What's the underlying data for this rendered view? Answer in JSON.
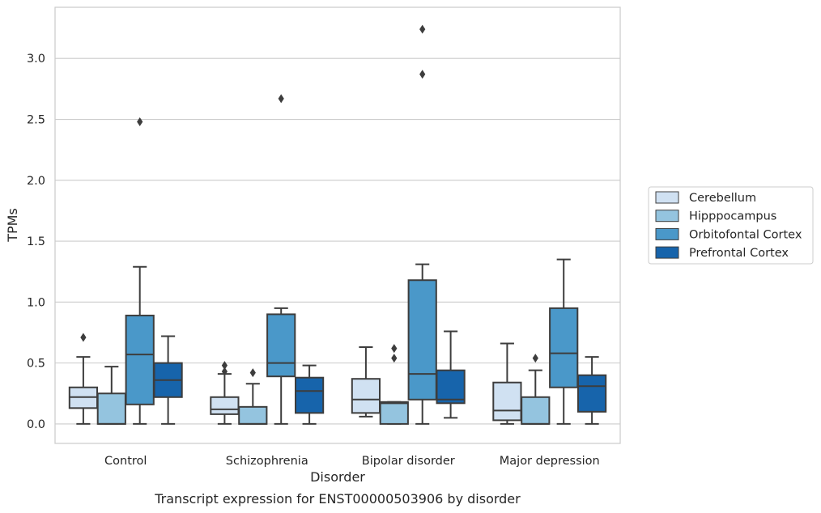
{
  "caption": "Transcript expression for ENST00000503906 by disorder",
  "chart_data": {
    "type": "box",
    "xlabel": "Disorder",
    "ylabel": "TPMs",
    "ylim": [
      -0.16,
      3.42
    ],
    "yticks": [
      "0.0",
      "0.5",
      "1.0",
      "1.5",
      "2.0",
      "2.5",
      "3.0"
    ],
    "ytick_values": [
      0,
      0.5,
      1.0,
      1.5,
      2.0,
      2.5,
      3.0
    ],
    "grid": "horizontal",
    "legend_position": "right",
    "categories": [
      "Control",
      "Schizophrenia",
      "Bipolar disorder",
      "Major depression"
    ],
    "series": [
      {
        "name": "Cerebellum",
        "color": "#d0e1f2",
        "boxes": [
          {
            "whislo": 0.0,
            "q1": 0.13,
            "med": 0.22,
            "q3": 0.3,
            "whishi": 0.55,
            "fliers": [
              0.71
            ]
          },
          {
            "whislo": 0.0,
            "q1": 0.08,
            "med": 0.12,
            "q3": 0.22,
            "whishi": 0.41,
            "fliers": [
              0.43,
              0.48
            ]
          },
          {
            "whislo": 0.06,
            "q1": 0.09,
            "med": 0.2,
            "q3": 0.37,
            "whishi": 0.63,
            "fliers": []
          },
          {
            "whislo": 0.0,
            "q1": 0.03,
            "med": 0.11,
            "q3": 0.34,
            "whishi": 0.66,
            "fliers": []
          }
        ]
      },
      {
        "name": "Hipppocampus",
        "color": "#94c4df",
        "boxes": [
          {
            "whislo": 0.0,
            "q1": 0.0,
            "med": 0.0,
            "q3": 0.25,
            "whishi": 0.47,
            "fliers": []
          },
          {
            "whislo": 0.0,
            "q1": 0.0,
            "med": 0.0,
            "q3": 0.14,
            "whishi": 0.33,
            "fliers": [
              0.42
            ]
          },
          {
            "whislo": 0.0,
            "q1": 0.0,
            "med": 0.17,
            "q3": 0.18,
            "whishi": 0.18,
            "fliers": [
              0.54,
              0.62
            ]
          },
          {
            "whislo": 0.0,
            "q1": 0.0,
            "med": 0.0,
            "q3": 0.22,
            "whishi": 0.44,
            "fliers": [
              0.54
            ]
          }
        ]
      },
      {
        "name": "Orbitofontal Cortex",
        "color": "#4a98c9",
        "boxes": [
          {
            "whislo": 0.0,
            "q1": 0.16,
            "med": 0.57,
            "q3": 0.89,
            "whishi": 1.29,
            "fliers": [
              2.48
            ]
          },
          {
            "whislo": 0.0,
            "q1": 0.39,
            "med": 0.5,
            "q3": 0.9,
            "whishi": 0.95,
            "fliers": [
              2.67
            ]
          },
          {
            "whislo": 0.0,
            "q1": 0.2,
            "med": 0.41,
            "q3": 1.18,
            "whishi": 1.31,
            "fliers": [
              2.87,
              3.24
            ]
          },
          {
            "whislo": 0.0,
            "q1": 0.3,
            "med": 0.58,
            "q3": 0.95,
            "whishi": 1.35,
            "fliers": []
          }
        ]
      },
      {
        "name": "Prefrontal Cortex",
        "color": "#1764ab",
        "boxes": [
          {
            "whislo": 0.0,
            "q1": 0.22,
            "med": 0.36,
            "q3": 0.5,
            "whishi": 0.72,
            "fliers": []
          },
          {
            "whislo": 0.0,
            "q1": 0.09,
            "med": 0.27,
            "q3": 0.38,
            "whishi": 0.48,
            "fliers": []
          },
          {
            "whislo": 0.05,
            "q1": 0.17,
            "med": 0.2,
            "q3": 0.44,
            "whishi": 0.76,
            "fliers": []
          },
          {
            "whislo": 0.0,
            "q1": 0.1,
            "med": 0.31,
            "q3": 0.4,
            "whishi": 0.55,
            "fliers": []
          }
        ]
      }
    ]
  }
}
